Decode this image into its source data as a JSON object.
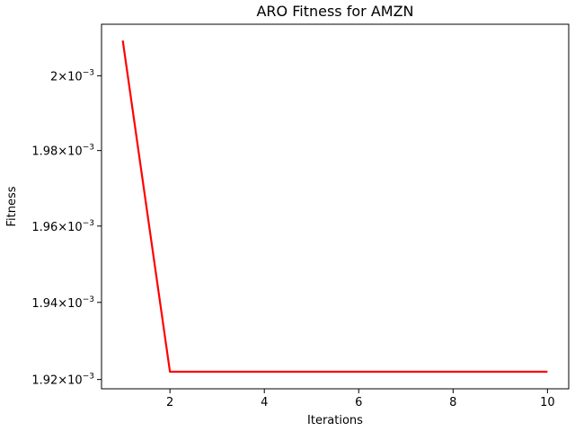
{
  "chart_data": {
    "type": "line",
    "title": "ARO Fitness for AMZN",
    "xlabel": "Iterations",
    "ylabel": "Fitness",
    "x": [
      1,
      2,
      3,
      4,
      5,
      6,
      7,
      8,
      9,
      10
    ],
    "series": [
      {
        "color": "#ff0000",
        "values": [
          0.0020095,
          0.001922,
          0.001922,
          0.001922,
          0.001922,
          0.001922,
          0.001922,
          0.001922,
          0.001922,
          0.001922
        ]
      }
    ],
    "xlim": [
      0.55,
      10.45
    ],
    "ylim": [
      0.0019176,
      0.0020139
    ],
    "y_scale": "log",
    "xticks": [
      2,
      4,
      6,
      8,
      10
    ],
    "xtick_labels": [
      "2",
      "4",
      "6",
      "8",
      "10"
    ],
    "yticks": [
      0.00192,
      0.00194,
      0.00196,
      0.00198,
      0.002
    ],
    "ytick_mantissas": [
      "1.92",
      "1.94",
      "1.96",
      "1.98",
      "2"
    ],
    "ytick_base": "10",
    "ytick_exponent": "−3",
    "ytick_times": "×",
    "grid": false,
    "legend": "none"
  }
}
